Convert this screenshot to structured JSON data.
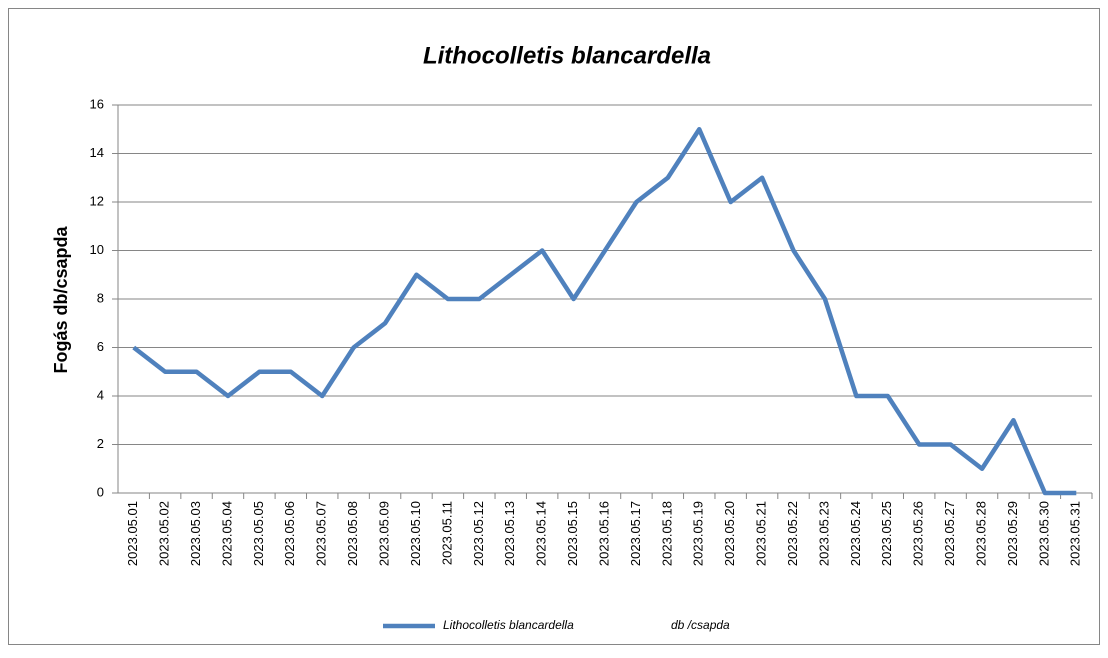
{
  "chart_data": {
    "type": "line",
    "title": "Lithocolletis blancardella",
    "y_label": "Fogás db/csapda",
    "categories": [
      "2023.05.01",
      "2023.05.02",
      "2023.05.03",
      "2023.05.04",
      "2023.05.05",
      "2023.05.06",
      "2023.05.07",
      "2023.05.08",
      "2023.05.09",
      "2023.05.10",
      "2023.05.11",
      "2023.05.12",
      "2023.05.13",
      "2023.05.14",
      "2023.05.15",
      "2023.05.16",
      "2023.05.17",
      "2023.05.18",
      "2023.05.19",
      "2023.05.20",
      "2023.05.21",
      "2023.05.22",
      "2023.05.23",
      "2023.05.24",
      "2023.05.25",
      "2023.05.26",
      "2023.05.27",
      "2023.05.28",
      "2023.05.29",
      "2023.05.30",
      "2023.05.31"
    ],
    "series": [
      {
        "name": "Lithocolletis blancardella",
        "unit": "db /csapda",
        "color": "#4f81bd",
        "values": [
          6,
          5,
          5,
          4,
          5,
          5,
          4,
          6,
          7,
          9,
          8,
          8,
          9,
          10,
          8,
          10,
          12,
          13,
          15,
          12,
          13,
          10,
          8,
          4,
          4,
          2,
          2,
          1,
          3,
          0,
          0
        ]
      }
    ],
    "ylim": [
      0,
      16
    ],
    "yticks": [
      0,
      2,
      4,
      6,
      8,
      10,
      12,
      14,
      16
    ],
    "grid": true,
    "legend": "bottom"
  }
}
